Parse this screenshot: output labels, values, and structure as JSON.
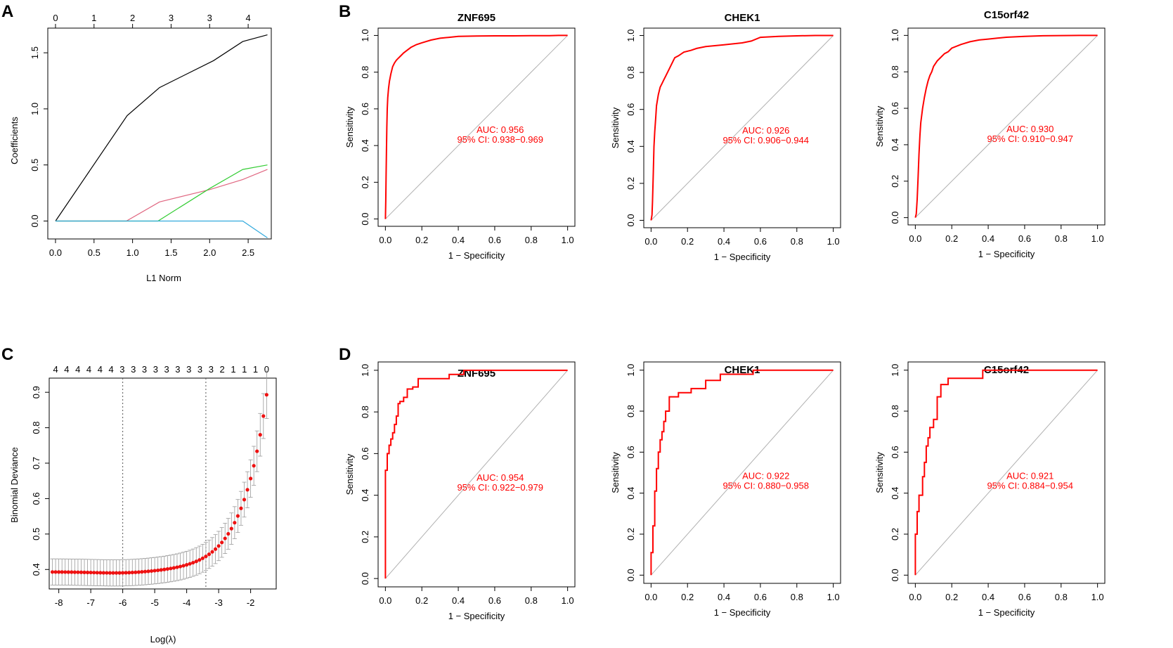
{
  "panels": {
    "A": {
      "letter": "A"
    },
    "B": {
      "letter": "B"
    },
    "C": {
      "letter": "C"
    },
    "D": {
      "letter": "D"
    }
  },
  "colors": {
    "black": "#000000",
    "red": "#ff0000",
    "green": "#33cc33",
    "pink": "#e06680",
    "blue": "#33aadd",
    "diagonal": "#b0b0b0",
    "error_bar": "#9a9a9a",
    "cv_point": "#ee1111"
  },
  "chart_data": [
    {
      "id": "A",
      "type": "line",
      "title": "",
      "xlabel": "L1 Norm",
      "ylabel": "Coefficients",
      "xlim": [
        -0.1,
        2.8
      ],
      "ylim": [
        -0.16,
        1.72
      ],
      "x_ticks": [
        "0.0",
        "0.5",
        "1.0",
        "1.5",
        "2.0",
        "2.5"
      ],
      "x_tick_values": [
        0,
        0.5,
        1.0,
        1.5,
        2.0,
        2.5
      ],
      "y_ticks": [
        "0.0",
        "0.5",
        "1.0",
        "1.5"
      ],
      "y_tick_values": [
        0,
        0.5,
        1.0,
        1.5
      ],
      "top_ticks": [
        "0",
        "1",
        "2",
        "3",
        "3",
        "4"
      ],
      "top_tick_values": [
        0,
        0.5,
        1.0,
        1.5,
        2.0,
        2.5
      ],
      "series": [
        {
          "name": "black",
          "color": "#000000",
          "x": [
            0,
            0.93,
            1.35,
            2.05,
            2.43,
            2.75
          ],
          "y": [
            0,
            0.94,
            1.19,
            1.43,
            1.6,
            1.66
          ]
        },
        {
          "name": "pink",
          "color": "#e06680",
          "x": [
            0,
            0.92,
            1.35,
            2.0,
            2.43,
            2.75
          ],
          "y": [
            0,
            0,
            0.17,
            0.28,
            0.37,
            0.46
          ]
        },
        {
          "name": "green",
          "color": "#33cc33",
          "x": [
            0,
            1.33,
            2.0,
            2.43,
            2.75
          ],
          "y": [
            0,
            0,
            0.29,
            0.46,
            0.5
          ]
        },
        {
          "name": "blue",
          "color": "#33aadd",
          "x": [
            0,
            2.43,
            2.75
          ],
          "y": [
            0,
            0,
            -0.15
          ]
        }
      ]
    },
    {
      "id": "C",
      "type": "scatter",
      "title": "",
      "xlabel": "Log(λ)",
      "ylabel": "Binomial Deviance",
      "xlim": [
        -8.3,
        -1.2
      ],
      "ylim": [
        0.345,
        0.94
      ],
      "x_ticks": [
        "-8",
        "-7",
        "-6",
        "-5",
        "-4",
        "-3",
        "-2"
      ],
      "x_tick_values": [
        -8,
        -7,
        -6,
        -5,
        -4,
        -3,
        -2
      ],
      "y_ticks": [
        "0.4",
        "0.5",
        "0.6",
        "0.7",
        "0.8",
        "0.9"
      ],
      "y_tick_values": [
        0.4,
        0.5,
        0.6,
        0.7,
        0.8,
        0.9
      ],
      "top_ticks": [
        "4",
        "4",
        "4",
        "4",
        "4",
        "4",
        "3",
        "3",
        "3",
        "3",
        "3",
        "3",
        "3",
        "3",
        "3",
        "2",
        "1",
        "1",
        "1",
        "0"
      ],
      "top_tick_start": -8.1,
      "top_tick_end": -1.5,
      "lambda_min": -6.0,
      "lambda_1se": -3.4,
      "cv_x_start": -8.2,
      "cv_x_end": -1.5,
      "cv_x_step": 0.1,
      "cv_base": 0.393,
      "cv_min": 0.392,
      "cv_amplitude": 0.5,
      "cv_growth": 1.28
    }
  ],
  "roc": {
    "xlabel": "1 − Specificity",
    "ylabel": "Sensitivity",
    "ticks": [
      "0.0",
      "0.2",
      "0.4",
      "0.6",
      "0.8",
      "1.0"
    ],
    "tick_values": [
      0,
      0.2,
      0.4,
      0.6,
      0.8,
      1.0
    ],
    "charts": [
      {
        "id": "B1",
        "title": "ZNF695",
        "auc": "AUC: 0.956",
        "ci": "95% CI: 0.938−0.969",
        "x": [
          0,
          0.002,
          0.004,
          0.006,
          0.008,
          0.01,
          0.013,
          0.017,
          0.022,
          0.03,
          0.04,
          0.05,
          0.06,
          0.07,
          0.08,
          0.1,
          0.12,
          0.14,
          0.17,
          0.2,
          0.25,
          0.3,
          0.35,
          0.4,
          0.5,
          0.6,
          0.7,
          0.8,
          0.9,
          0.95,
          1.0
        ],
        "y": [
          0,
          0.1,
          0.25,
          0.38,
          0.5,
          0.6,
          0.66,
          0.71,
          0.75,
          0.79,
          0.83,
          0.85,
          0.865,
          0.875,
          0.885,
          0.905,
          0.92,
          0.935,
          0.95,
          0.96,
          0.975,
          0.985,
          0.99,
          0.995,
          0.997,
          0.998,
          0.998,
          0.999,
          0.999,
          1.0,
          1.0
        ]
      },
      {
        "id": "B2",
        "title": "CHEK1",
        "auc": "AUC: 0.926",
        "ci": "95% CI: 0.906−0.944",
        "x": [
          0,
          0.005,
          0.008,
          0.012,
          0.016,
          0.02,
          0.025,
          0.03,
          0.04,
          0.05,
          0.06,
          0.07,
          0.08,
          0.1,
          0.12,
          0.13,
          0.15,
          0.18,
          0.22,
          0.25,
          0.3,
          0.35,
          0.4,
          0.45,
          0.5,
          0.55,
          0.6,
          0.7,
          0.8,
          0.9,
          1.0
        ],
        "y": [
          0,
          0.03,
          0.1,
          0.25,
          0.4,
          0.48,
          0.55,
          0.62,
          0.68,
          0.72,
          0.74,
          0.76,
          0.78,
          0.82,
          0.86,
          0.88,
          0.89,
          0.91,
          0.92,
          0.93,
          0.94,
          0.945,
          0.95,
          0.955,
          0.96,
          0.97,
          0.99,
          0.995,
          0.998,
          1.0,
          1.0
        ]
      },
      {
        "id": "B3",
        "title": "C15orf42",
        "auc": "AUC: 0.930",
        "ci": "95% CI: 0.910−0.947",
        "x": [
          0,
          0.005,
          0.01,
          0.015,
          0.02,
          0.025,
          0.03,
          0.04,
          0.05,
          0.06,
          0.07,
          0.08,
          0.09,
          0.1,
          0.12,
          0.14,
          0.16,
          0.18,
          0.2,
          0.25,
          0.3,
          0.35,
          0.4,
          0.45,
          0.5,
          0.6,
          0.7,
          0.8,
          0.9,
          1.0
        ],
        "y": [
          0,
          0.02,
          0.1,
          0.22,
          0.35,
          0.45,
          0.52,
          0.6,
          0.66,
          0.71,
          0.75,
          0.78,
          0.8,
          0.83,
          0.86,
          0.88,
          0.9,
          0.91,
          0.93,
          0.95,
          0.965,
          0.975,
          0.98,
          0.985,
          0.99,
          0.995,
          0.998,
          0.999,
          1.0,
          1.0
        ]
      },
      {
        "id": "D1",
        "title": "ZNF695",
        "auc": "AUC: 0.954",
        "ci": "95% CI: 0.922−0.979",
        "steps": true,
        "x": [
          0,
          0,
          0.01,
          0.01,
          0.02,
          0.02,
          0.03,
          0.03,
          0.04,
          0.04,
          0.05,
          0.05,
          0.06,
          0.06,
          0.07,
          0.07,
          0.08,
          0.08,
          0.1,
          0.1,
          0.12,
          0.12,
          0.15,
          0.15,
          0.18,
          0.18,
          0.35,
          0.35,
          0.43,
          0.43,
          1.0
        ],
        "y": [
          0,
          0.52,
          0.52,
          0.6,
          0.6,
          0.64,
          0.64,
          0.67,
          0.67,
          0.7,
          0.7,
          0.74,
          0.74,
          0.78,
          0.78,
          0.84,
          0.84,
          0.85,
          0.85,
          0.87,
          0.87,
          0.91,
          0.91,
          0.92,
          0.92,
          0.96,
          0.96,
          0.98,
          0.98,
          1.0,
          1.0
        ]
      },
      {
        "id": "D2",
        "title": "CHEK1",
        "auc": "AUC: 0.922",
        "ci": "95% CI: 0.880−0.958",
        "steps": true,
        "x": [
          0,
          0,
          0.01,
          0.01,
          0.02,
          0.02,
          0.03,
          0.03,
          0.04,
          0.04,
          0.05,
          0.05,
          0.06,
          0.06,
          0.07,
          0.07,
          0.08,
          0.08,
          0.1,
          0.1,
          0.15,
          0.15,
          0.22,
          0.22,
          0.3,
          0.3,
          0.38,
          0.38,
          0.56,
          0.56,
          1.0
        ],
        "y": [
          0,
          0.11,
          0.11,
          0.24,
          0.24,
          0.41,
          0.41,
          0.52,
          0.52,
          0.6,
          0.6,
          0.66,
          0.66,
          0.7,
          0.7,
          0.75,
          0.75,
          0.8,
          0.8,
          0.87,
          0.87,
          0.89,
          0.89,
          0.91,
          0.91,
          0.95,
          0.95,
          0.98,
          0.98,
          1.0,
          1.0
        ]
      },
      {
        "id": "D3",
        "title": "C15orf42",
        "auc": "AUC: 0.921",
        "ci": "95% CI: 0.884−0.954",
        "steps": true,
        "x": [
          0,
          0,
          0.01,
          0.01,
          0.02,
          0.02,
          0.04,
          0.04,
          0.05,
          0.05,
          0.06,
          0.06,
          0.07,
          0.07,
          0.08,
          0.08,
          0.1,
          0.1,
          0.12,
          0.12,
          0.14,
          0.14,
          0.18,
          0.18,
          0.22,
          0.22,
          0.37,
          0.37,
          1.0
        ],
        "y": [
          0,
          0.2,
          0.2,
          0.31,
          0.31,
          0.39,
          0.39,
          0.48,
          0.48,
          0.55,
          0.55,
          0.63,
          0.63,
          0.67,
          0.67,
          0.72,
          0.72,
          0.76,
          0.76,
          0.87,
          0.87,
          0.93,
          0.93,
          0.96,
          0.96,
          0.96,
          0.96,
          1.0,
          1.0
        ]
      }
    ]
  }
}
